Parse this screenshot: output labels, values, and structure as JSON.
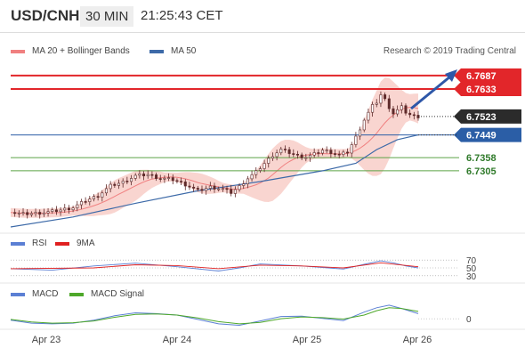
{
  "header": {
    "symbol": "USD/CNH",
    "timeframe": "30 MIN",
    "clock": "21:25:43 CET"
  },
  "legend": {
    "ma20": "MA 20 + Bollinger Bands",
    "ma50": "MA 50",
    "credit": "Research © 2019 Trading Central",
    "rsi": "RSI",
    "ma9": "9MA",
    "macd": "MACD",
    "macd_signal": "MACD Signal"
  },
  "colors": {
    "resistance": "#e2262a",
    "support": "#5ca346",
    "pivot": "#2b5ea6",
    "candle": "#5e2a2a",
    "bollinger": "#f7c7c0",
    "ma20": "#f08080",
    "ma50": "#3d6aa8",
    "rsi": "#5b7fd4",
    "ma9": "#e02020",
    "macd": "#5b7fd4",
    "macd_signal": "#4ea82a"
  },
  "chart_data": [
    {
      "type": "candlestick",
      "title": "USD/CNH 30 MIN",
      "x_ticks": [
        "Apr 23",
        "Apr 24",
        "Apr 25",
        "Apr 26"
      ],
      "ylim": [
        6.708,
        6.774
      ],
      "levels": [
        {
          "name": "resistance-2",
          "value": 6.7687,
          "label": "6.7687",
          "kind": "resistance"
        },
        {
          "name": "resistance-1",
          "value": 6.7633,
          "label": "6.7633",
          "kind": "resistance"
        },
        {
          "name": "pivot",
          "value": 6.7449,
          "label": "6.7449",
          "kind": "pivot"
        },
        {
          "name": "support-1",
          "value": 6.7358,
          "label": "6.7358",
          "kind": "support"
        },
        {
          "name": "support-2",
          "value": 6.7305,
          "label": "6.7305",
          "kind": "support"
        }
      ],
      "last_price": {
        "value": 6.7523,
        "label": "6.7523"
      },
      "series": [
        {
          "name": "Close",
          "x": [
            0,
            6,
            12,
            18,
            24,
            30,
            36,
            42,
            48,
            54,
            60,
            66,
            72,
            78,
            84,
            90,
            96,
            102,
            106,
            110,
            114,
            118,
            122,
            126,
            130,
            134,
            138,
            142,
            146,
            150,
            154,
            158,
            162,
            166,
            170,
            174,
            176,
            178,
            180,
            182,
            184,
            186,
            188,
            190,
            192,
            194,
            196
          ],
          "y": [
            6.7138,
            6.7132,
            6.7135,
            6.714,
            6.7148,
            6.7158,
            6.7185,
            6.7205,
            6.7245,
            6.726,
            6.7285,
            6.729,
            6.7275,
            6.727,
            6.725,
            6.7225,
            6.724,
            6.7232,
            6.7218,
            6.7242,
            6.7275,
            6.73,
            6.7335,
            6.7368,
            6.739,
            6.7378,
            6.7365,
            6.736,
            6.7372,
            6.7388,
            6.738,
            6.7368,
            6.738,
            6.744,
            6.751,
            6.7565,
            6.758,
            6.761,
            6.759,
            6.756,
            6.7535,
            6.7548,
            6.756,
            6.754,
            6.753,
            6.7524,
            6.7523
          ]
        },
        {
          "name": "MA 50",
          "x": [
            0,
            30,
            60,
            90,
            120,
            150,
            166,
            176,
            186,
            196
          ],
          "y": [
            6.708,
            6.712,
            6.7175,
            6.7225,
            6.7262,
            6.7305,
            6.7335,
            6.739,
            6.743,
            6.7449
          ]
        }
      ]
    },
    {
      "type": "line",
      "title": "RSI",
      "y_ticks": [
        "70",
        "50",
        "30"
      ],
      "series": [
        {
          "name": "RSI",
          "x": [
            0,
            20,
            40,
            60,
            80,
            100,
            110,
            120,
            140,
            160,
            170,
            178,
            184,
            190,
            196
          ],
          "y": [
            48,
            44,
            55,
            62,
            53,
            42,
            50,
            60,
            55,
            47,
            59,
            68,
            63,
            55,
            50
          ]
        },
        {
          "name": "9MA",
          "x": [
            0,
            40,
            60,
            80,
            100,
            120,
            140,
            160,
            178,
            196
          ],
          "y": [
            48,
            50,
            58,
            56,
            48,
            57,
            55,
            50,
            63,
            53
          ]
        }
      ]
    },
    {
      "type": "line",
      "title": "MACD",
      "y_ticks": [
        "0"
      ],
      "series": [
        {
          "name": "MACD",
          "x": [
            0,
            10,
            20,
            30,
            40,
            50,
            60,
            70,
            80,
            90,
            100,
            110,
            120,
            130,
            140,
            150,
            160,
            170,
            176,
            182,
            188,
            196
          ],
          "y": [
            -0.2,
            -0.6,
            -0.7,
            -0.6,
            -0.2,
            0.4,
            0.8,
            0.7,
            0.5,
            -0.1,
            -0.7,
            -0.9,
            -0.3,
            0.3,
            0.35,
            0.05,
            -0.25,
            0.9,
            1.5,
            1.85,
            1.4,
            0.7
          ]
        },
        {
          "name": "MACD Signal",
          "x": [
            0,
            10,
            20,
            30,
            40,
            50,
            60,
            70,
            80,
            90,
            100,
            110,
            120,
            130,
            140,
            150,
            160,
            170,
            176,
            182,
            188,
            196
          ],
          "y": [
            -0.1,
            -0.45,
            -0.6,
            -0.55,
            -0.3,
            0.2,
            0.6,
            0.65,
            0.5,
            0.1,
            -0.4,
            -0.7,
            -0.5,
            0.0,
            0.25,
            0.15,
            -0.05,
            0.5,
            1.1,
            1.5,
            1.4,
            1.0
          ]
        }
      ]
    }
  ]
}
